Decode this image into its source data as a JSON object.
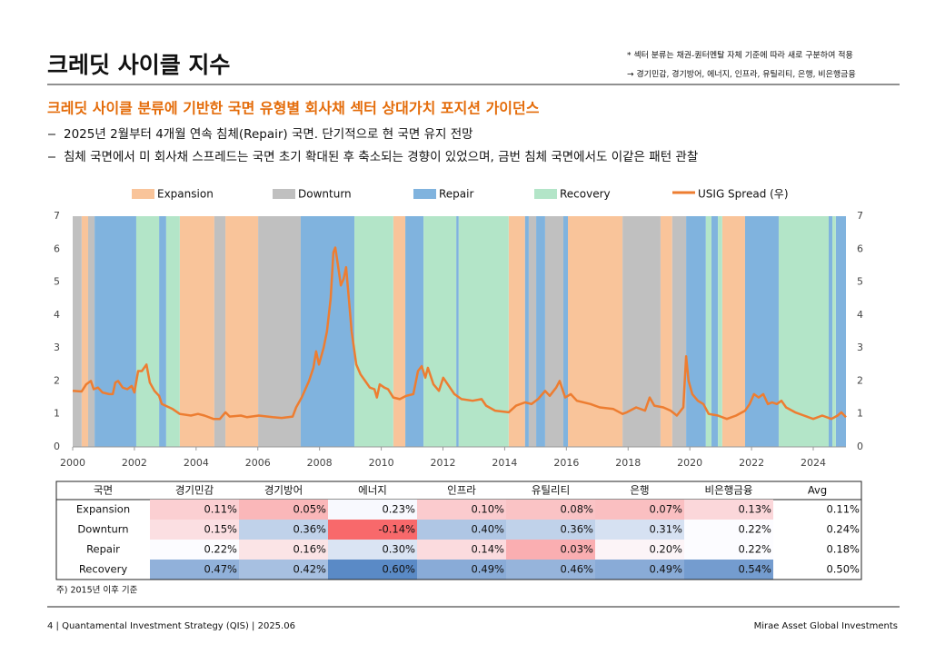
{
  "header": {
    "title": "크레딧 사이클 지수",
    "notes": [
      "* 섹터 분류는 채권-퀀터멘탈 자체 기준에 따라 새로 구분하여 적용",
      "→ 경기민감, 경기방어, 에너지, 인프라, 유틸리티, 은행, 비은행금융"
    ]
  },
  "subtitle": "크레딧 사이클 분류에 기반한 국면 유형별 회사채 섹터 상대가치 포지션 가이던스",
  "bullets": [
    "2025년 2월부터 4개월 연속 침체(Repair) 국면. 단기적으로 현 국면 유지 전망",
    "침체 국면에서 미 회사채 스프레드는 국면 초기 확대된 후 축소되는 경향이 있었으며, 금번 침체 국면에서도 이같은 패턴 관찰"
  ],
  "chart_data": {
    "type": "line",
    "xlim": [
      2000,
      2025.06
    ],
    "xticks": [
      2000,
      2002,
      2004,
      2006,
      2008,
      2010,
      2012,
      2014,
      2016,
      2018,
      2020,
      2022,
      2024
    ],
    "ylim": [
      0,
      7
    ],
    "yticks": [
      0,
      1,
      2,
      3,
      4,
      5,
      6,
      7
    ],
    "y2lim": [
      0,
      7
    ],
    "y2ticks": [
      0,
      1,
      2,
      3,
      4,
      5,
      6,
      7
    ],
    "series": [
      {
        "name": "Expansion",
        "color": "#f9c49a",
        "periods": [
          [
            2000.29,
            2000.5
          ],
          [
            2003.47,
            2004.59
          ],
          [
            2004.95,
            2006.01
          ],
          [
            2010.39,
            2010.78
          ],
          [
            2014.13,
            2014.66
          ],
          [
            2016.05,
            2017.82
          ],
          [
            2019.05,
            2019.43
          ],
          [
            2021.05,
            2021.79
          ]
        ]
      },
      {
        "name": "Downturn",
        "color": "#c0c0c0",
        "periods": [
          [
            2000,
            2000.29
          ],
          [
            2000.5,
            2000.71
          ],
          [
            2004.59,
            2004.95
          ],
          [
            2006.01,
            2007.39
          ],
          [
            2014.78,
            2015.02
          ],
          [
            2015.31,
            2015.9
          ],
          [
            2017.82,
            2019.05
          ],
          [
            2019.43,
            2019.88
          ]
        ]
      },
      {
        "name": "Repair",
        "color": "#80b3de",
        "periods": [
          [
            2000.71,
            2002.06
          ],
          [
            2002.8,
            2003.03
          ],
          [
            2007.39,
            2009.13
          ],
          [
            2010.78,
            2011.37
          ],
          [
            2012.43,
            2012.51
          ],
          [
            2014.66,
            2014.78
          ],
          [
            2015.02,
            2015.31
          ],
          [
            2015.9,
            2016.05
          ],
          [
            2019.88,
            2020.52
          ],
          [
            2020.7,
            2020.91
          ],
          [
            2021.79,
            2022.88
          ],
          [
            2024.5,
            2024.62
          ],
          [
            2024.73,
            2025.06
          ]
        ]
      },
      {
        "name": "Recovery",
        "color": "#b3e5c8",
        "periods": [
          [
            2002.06,
            2002.8
          ],
          [
            2003.03,
            2003.47
          ],
          [
            2009.13,
            2010.39
          ],
          [
            2011.37,
            2012.43
          ],
          [
            2012.51,
            2014.13
          ],
          [
            2020.52,
            2020.7
          ],
          [
            2020.91,
            2021.05
          ],
          [
            2022.88,
            2024.5
          ],
          [
            2024.62,
            2024.73
          ]
        ]
      },
      {
        "name": "USIG Spread (우)",
        "color": "#ed7d31",
        "axis": "y2",
        "x": [
          2000.0,
          2000.29,
          2000.44,
          2000.59,
          2000.68,
          2000.82,
          2000.97,
          2001.18,
          2001.3,
          2001.38,
          2001.47,
          2001.62,
          2001.77,
          2001.91,
          2002.0,
          2002.12,
          2002.24,
          2002.39,
          2002.5,
          2002.65,
          2002.8,
          2002.89,
          2003.24,
          2003.47,
          2003.83,
          2004.06,
          2004.27,
          2004.56,
          2004.77,
          2004.95,
          2005.09,
          2005.45,
          2005.65,
          2006.03,
          2006.48,
          2006.77,
          2007.13,
          2007.24,
          2007.42,
          2007.66,
          2007.8,
          2007.89,
          2007.98,
          2008.13,
          2008.24,
          2008.36,
          2008.45,
          2008.51,
          2008.6,
          2008.69,
          2008.78,
          2008.86,
          2008.95,
          2009.04,
          2009.19,
          2009.33,
          2009.48,
          2009.63,
          2009.78,
          2009.86,
          2009.95,
          2010.1,
          2010.22,
          2010.39,
          2010.6,
          2010.81,
          2011.04,
          2011.19,
          2011.31,
          2011.43,
          2011.51,
          2011.69,
          2011.87,
          2012.01,
          2012.19,
          2012.37,
          2012.6,
          2012.96,
          2013.25,
          2013.4,
          2013.69,
          2014.13,
          2014.37,
          2014.66,
          2014.87,
          2015.08,
          2015.31,
          2015.46,
          2015.67,
          2015.78,
          2015.96,
          2016.14,
          2016.34,
          2016.78,
          2017.08,
          2017.52,
          2017.82,
          2017.96,
          2018.26,
          2018.55,
          2018.7,
          2018.85,
          2019.14,
          2019.38,
          2019.58,
          2019.79,
          2019.88,
          2019.96,
          2020.08,
          2020.26,
          2020.44,
          2020.61,
          2020.91,
          2021.2,
          2021.5,
          2021.79,
          2021.94,
          2022.08,
          2022.23,
          2022.38,
          2022.53,
          2022.67,
          2022.82,
          2022.97,
          2023.12,
          2023.41,
          2023.7,
          2024.0,
          2024.29,
          2024.59,
          2024.79,
          2024.91,
          2025.06
        ],
        "values": [
          1.7,
          1.68,
          1.9,
          2.0,
          1.75,
          1.8,
          1.65,
          1.6,
          1.6,
          1.95,
          2.0,
          1.8,
          1.75,
          1.85,
          1.65,
          2.3,
          2.3,
          2.5,
          1.95,
          1.7,
          1.55,
          1.3,
          1.15,
          1.0,
          0.95,
          1.0,
          0.95,
          0.85,
          0.85,
          1.05,
          0.92,
          0.95,
          0.9,
          0.95,
          0.9,
          0.88,
          0.92,
          1.2,
          1.5,
          2.0,
          2.4,
          2.9,
          2.5,
          3.0,
          3.5,
          4.5,
          5.9,
          6.05,
          5.5,
          4.9,
          5.1,
          5.45,
          4.5,
          3.5,
          2.5,
          2.2,
          2.0,
          1.8,
          1.75,
          1.5,
          1.9,
          1.8,
          1.75,
          1.5,
          1.45,
          1.55,
          1.6,
          2.3,
          2.45,
          2.1,
          2.4,
          1.9,
          1.7,
          2.1,
          1.85,
          1.6,
          1.45,
          1.4,
          1.45,
          1.25,
          1.1,
          1.05,
          1.25,
          1.35,
          1.3,
          1.45,
          1.7,
          1.55,
          1.8,
          2.0,
          1.5,
          1.6,
          1.4,
          1.3,
          1.2,
          1.15,
          1.0,
          1.05,
          1.2,
          1.1,
          1.5,
          1.25,
          1.2,
          1.1,
          0.95,
          1.2,
          2.75,
          2.0,
          1.6,
          1.4,
          1.3,
          1.0,
          0.95,
          0.85,
          0.95,
          1.1,
          1.3,
          1.6,
          1.5,
          1.6,
          1.3,
          1.35,
          1.3,
          1.4,
          1.2,
          1.05,
          0.95,
          0.85,
          0.95,
          0.85,
          0.95,
          1.05,
          0.9
        ]
      }
    ]
  },
  "table": {
    "header": [
      "국면",
      "경기민감",
      "경기방어",
      "에너지",
      "인프라",
      "유틸리티",
      "은행",
      "비은행금융",
      "Avg"
    ],
    "rows": [
      {
        "label": "Expansion",
        "values": [
          0.11,
          0.05,
          0.23,
          0.1,
          0.08,
          0.07,
          0.13
        ],
        "value_labels": [
          "0.11%",
          "0.05%",
          "0.23%",
          "0.10%",
          "0.08%",
          "0.07%",
          "0.13%"
        ],
        "avg": 0.11,
        "avg_label": "0.11%"
      },
      {
        "label": "Downturn",
        "values": [
          0.15,
          0.36,
          -0.14,
          0.4,
          0.36,
          0.31,
          0.22
        ],
        "value_labels": [
          "0.15%",
          "0.36%",
          "-0.14%",
          "0.40%",
          "0.36%",
          "0.31%",
          "0.22%"
        ],
        "avg": 0.24,
        "avg_label": "0.24%"
      },
      {
        "label": "Repair",
        "values": [
          0.22,
          0.16,
          0.3,
          0.14,
          0.03,
          0.2,
          0.22
        ],
        "value_labels": [
          "0.22%",
          "0.16%",
          "0.30%",
          "0.14%",
          "0.03%",
          "0.20%",
          "0.22%"
        ],
        "avg": 0.18,
        "avg_label": "0.18%"
      },
      {
        "label": "Recovery",
        "values": [
          0.47,
          0.42,
          0.6,
          0.49,
          0.46,
          0.49,
          0.54
        ],
        "value_labels": [
          "0.47%",
          "0.42%",
          "0.60%",
          "0.49%",
          "0.46%",
          "0.49%",
          "0.54%"
        ],
        "avg": 0.5,
        "avg_label": "0.50%"
      }
    ]
  },
  "footnote": "주) 2015년 이후 기준",
  "footer": {
    "left": "4 | Quantamental Investment Strategy (QIS) | 2025.06",
    "right": "Mirae Asset Global Investments"
  }
}
